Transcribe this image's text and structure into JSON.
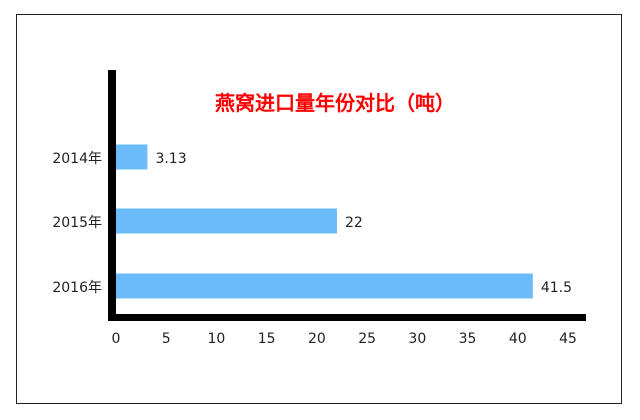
{
  "chart_data": {
    "type": "bar",
    "orientation": "horizontal",
    "title": "燕窝进口量年份对比（吨）",
    "title_color": "#ff0000",
    "bar_color": "#6bbbfb",
    "categories": [
      "2014年",
      "2015年",
      "2016年"
    ],
    "values": [
      3.13,
      22,
      41.5
    ],
    "data_labels": [
      "3.13",
      "22",
      "41.5"
    ],
    "xlim": [
      0,
      45
    ],
    "x_ticks": [
      "0",
      "5",
      "10",
      "15",
      "20",
      "25",
      "30",
      "35",
      "40",
      "45"
    ],
    "grid": false
  }
}
